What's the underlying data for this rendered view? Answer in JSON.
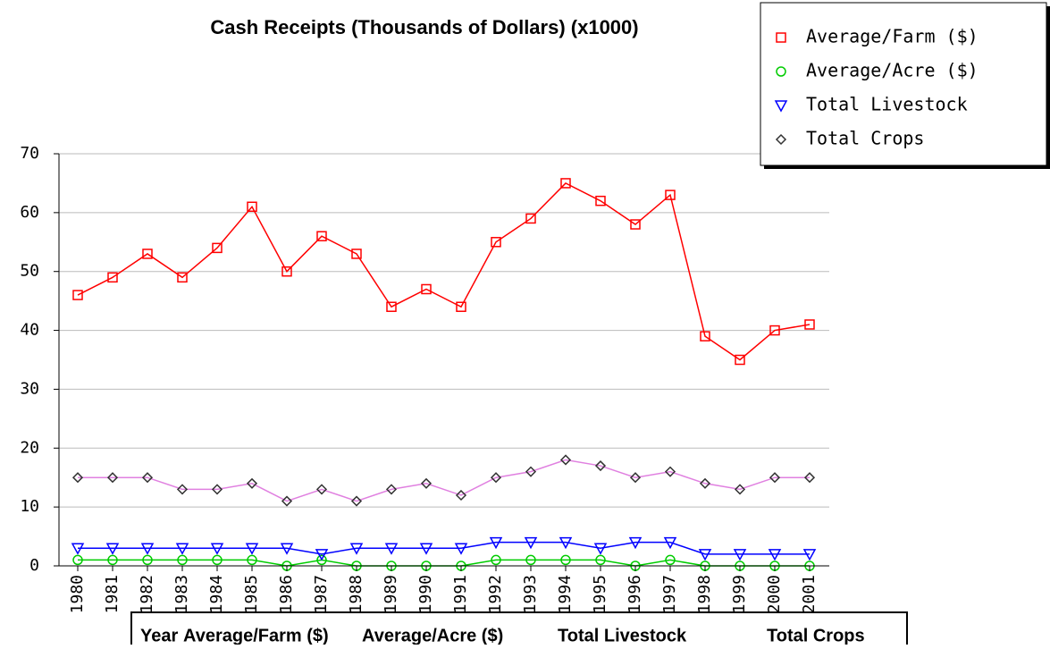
{
  "chart_data": {
    "type": "line",
    "title": "Cash Receipts (Thousands of Dollars) (x1000)",
    "categories": [
      "1980",
      "1981",
      "1982",
      "1983",
      "1984",
      "1985",
      "1986",
      "1987",
      "1988",
      "1989",
      "1990",
      "1991",
      "1992",
      "1993",
      "1994",
      "1995",
      "1996",
      "1997",
      "1998",
      "1999",
      "2000",
      "2001"
    ],
    "series": [
      {
        "name": "Average/Farm ($)",
        "color": "#ff0000",
        "line_color": "#ff0000",
        "marker": "square",
        "values": [
          46,
          49,
          53,
          49,
          54,
          61,
          50,
          56,
          53,
          44,
          47,
          44,
          55,
          59,
          65,
          62,
          58,
          63,
          39,
          35,
          40,
          41
        ]
      },
      {
        "name": "Average/Acre ($)",
        "color": "#00cc00",
        "line_color": "#00cc00",
        "marker": "circle",
        "values": [
          1,
          1,
          1,
          1,
          1,
          1,
          0,
          1,
          0,
          0,
          0,
          0,
          1,
          1,
          1,
          1,
          0,
          1,
          0,
          0,
          0,
          0
        ]
      },
      {
        "name": "Total Livestock",
        "color": "#0000ff",
        "line_color": "#0000ff",
        "marker": "triangle",
        "values": [
          3,
          3,
          3,
          3,
          3,
          3,
          3,
          2,
          3,
          3,
          3,
          3,
          4,
          4,
          4,
          3,
          4,
          4,
          2,
          2,
          2,
          2
        ]
      },
      {
        "name": "Total Crops",
        "color": "#333333",
        "line_color": "#e080e0",
        "marker": "diamond",
        "values": [
          15,
          15,
          15,
          13,
          13,
          14,
          11,
          13,
          11,
          13,
          14,
          12,
          15,
          16,
          18,
          17,
          15,
          16,
          14,
          13,
          15,
          15
        ]
      }
    ],
    "ylim": [
      0,
      70
    ],
    "yticks": [
      0,
      10,
      20,
      30,
      40,
      50,
      60,
      70
    ],
    "grid": true,
    "legend": "top-right"
  },
  "table": {
    "columns": [
      "Year",
      "Average/Farm  ($)",
      "Average/Acre  ($)",
      "Total Livestock",
      "Total Crops"
    ]
  }
}
